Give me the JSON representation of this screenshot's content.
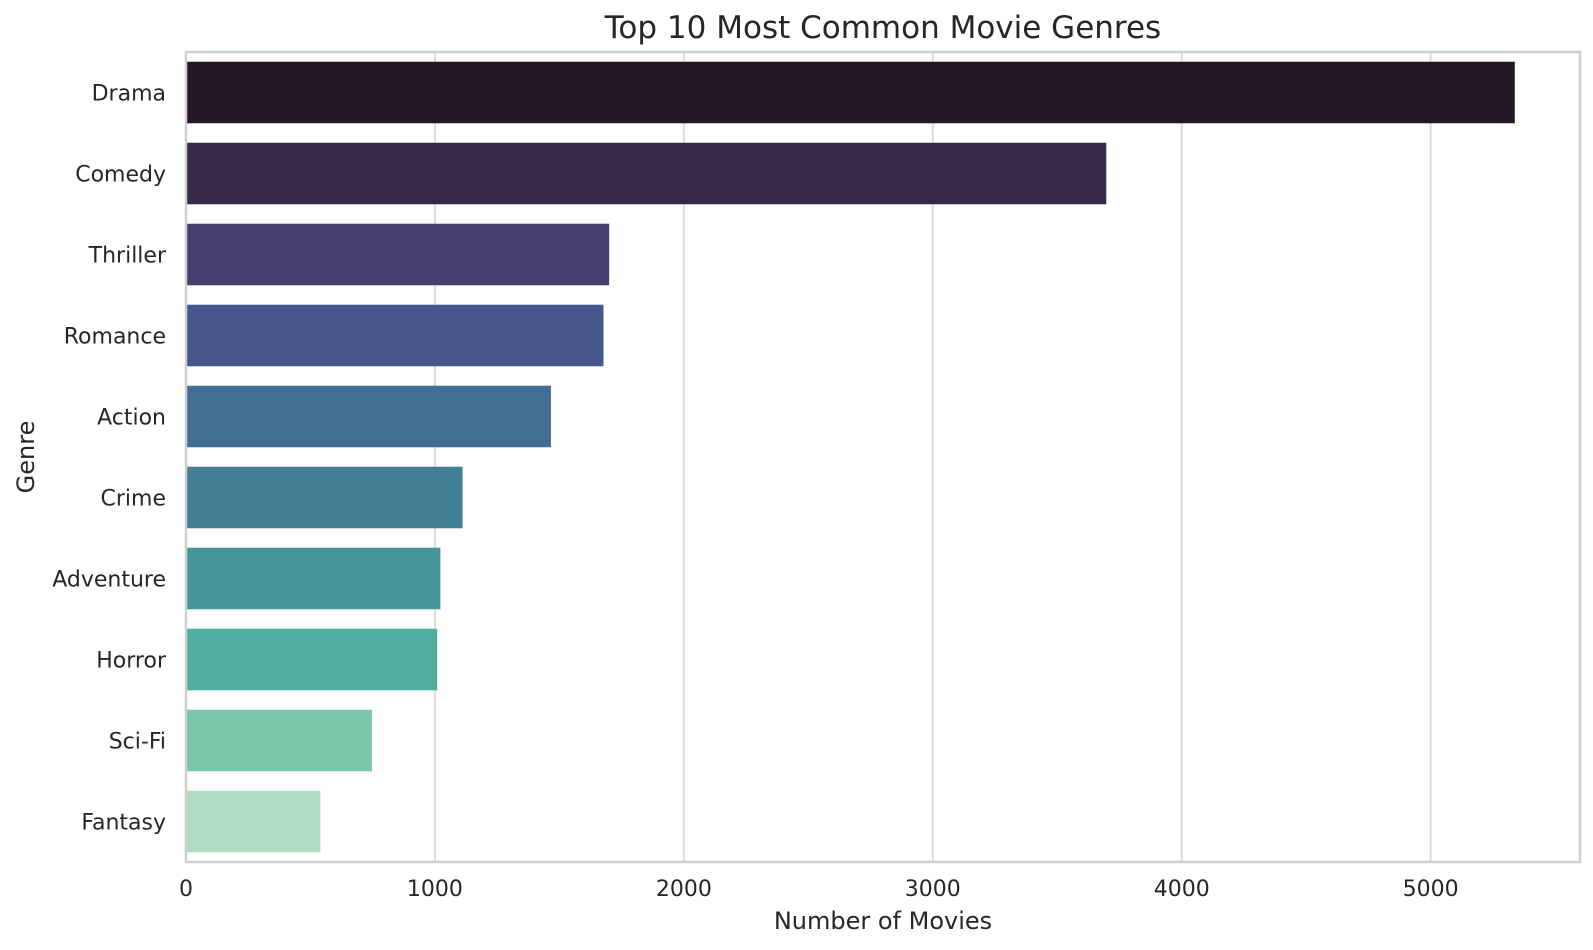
{
  "chart_data": {
    "type": "bar",
    "orientation": "horizontal",
    "title": "Top 10 Most Common Movie Genres",
    "xlabel": "Number of Movies",
    "ylabel": "Genre",
    "xlim": [
      0,
      5600
    ],
    "xticks": [
      0,
      1000,
      2000,
      3000,
      4000,
      5000
    ],
    "categories": [
      "Drama",
      "Comedy",
      "Thriller",
      "Romance",
      "Action",
      "Crime",
      "Adventure",
      "Horror",
      "Sci-Fi",
      "Fantasy"
    ],
    "values": [
      5338,
      3697,
      1700,
      1677,
      1466,
      1111,
      1022,
      1009,
      747,
      540
    ],
    "colors": [
      "#241825",
      "#362a47",
      "#473d6f",
      "#45578a",
      "#436d92",
      "#438096",
      "#47959a",
      "#52ada0",
      "#7ac6a7",
      "#b2dcc1"
    ],
    "grid": "vertical"
  }
}
